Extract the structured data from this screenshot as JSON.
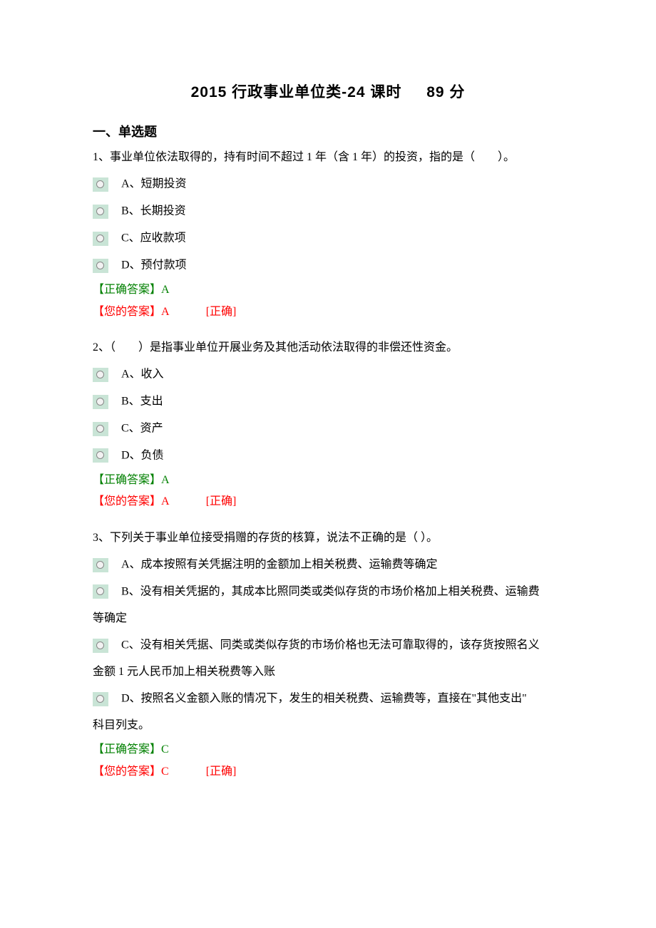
{
  "title_main": "2015 行政事业单位类-24 课时",
  "title_points": "89 分",
  "section_heading": "一、单选题",
  "labels": {
    "correct_prefix": "【正确答案】",
    "yours_prefix": "【您的答案】",
    "status_correct": "[正确]"
  },
  "colors": {
    "correct": "#008000",
    "yours": "#ff0000",
    "radio_bg": "#c9e4d6"
  },
  "questions": [
    {
      "number": "1、",
      "text": "事业单位依法取得的，持有时间不超过 1 年（含 1 年）的投资，指的是（　　）。",
      "options": [
        {
          "label": "A、短期投资"
        },
        {
          "label": "B、长期投资"
        },
        {
          "label": "C、应收款项"
        },
        {
          "label": "D、预付款项"
        }
      ],
      "correct": "A",
      "yours": "A",
      "status": "[正确]"
    },
    {
      "number": "2、",
      "text": "（　　）是指事业单位开展业务及其他活动依法取得的非偿还性资金。",
      "options": [
        {
          "label": "A、收入"
        },
        {
          "label": "B、支出"
        },
        {
          "label": "C、资产"
        },
        {
          "label": "D、负债"
        }
      ],
      "correct": "A",
      "yours": "A",
      "status": "[正确]"
    },
    {
      "number": "3、",
      "text": "下列关于事业单位接受捐赠的存货的核算，说法不正确的是（ ）。",
      "options": [
        {
          "label": "A、成本按照有关凭据注明的金额加上相关税费、运输费等确定"
        },
        {
          "label": "B、没有相关凭据的，其成本比照同类或类似存货的市场价格加上相关税费、运输费",
          "continuation": "等确定"
        },
        {
          "label": "C、没有相关凭据、同类或类似存货的市场价格也无法可靠取得的，该存货按照名义",
          "continuation": "金额 1 元人民币加上相关税费等入账"
        },
        {
          "label": "D、按照名义金额入账的情况下，发生的相关税费、运输费等，直接在\"其他支出\"",
          "continuation": "科目列支。"
        }
      ],
      "correct": "C",
      "yours": "C",
      "status": "[正确]"
    }
  ]
}
